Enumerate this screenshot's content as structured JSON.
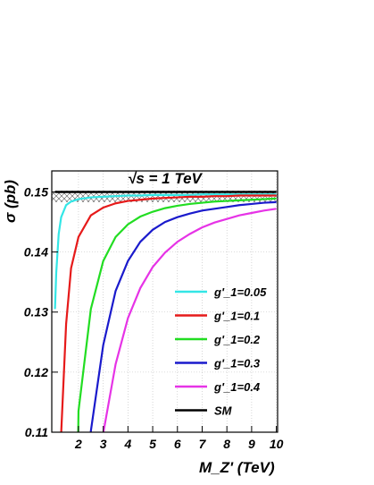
{
  "chart_data": {
    "type": "line",
    "title": "√s = 1 TeV",
    "xlabel": "M_Z' (TeV)",
    "ylabel": "σ (pb)",
    "xlim": [
      0.92,
      10.05
    ],
    "ylim": [
      0.11,
      0.1535
    ],
    "xticks": [
      2,
      3,
      4,
      5,
      6,
      7,
      8,
      9,
      10
    ],
    "yticks": [
      0.11,
      0.12,
      0.13,
      0.14,
      0.15
    ],
    "ytick_labels": [
      "0.11",
      "0.12",
      "0.13",
      "0.14",
      "0.15"
    ],
    "grid": true,
    "legend_position": "bottom-right",
    "sm_value": 0.15,
    "sm_band": [
      0.1483,
      0.1502
    ],
    "x": [
      1.05,
      1.1,
      1.2,
      1.3,
      1.5,
      1.7,
      2.0,
      2.5,
      3.0,
      3.5,
      4.0,
      4.5,
      5.0,
      5.5,
      6.0,
      6.5,
      7.0,
      7.5,
      8.0,
      8.5,
      9.0,
      9.5,
      10.0
    ],
    "series": [
      {
        "name": "g'_1=0.05",
        "color": "#33e6e6",
        "values": [
          0.1305,
          0.1365,
          0.143,
          0.1458,
          0.1478,
          0.1484,
          0.1488,
          0.1491,
          0.1492,
          0.1493,
          0.1494,
          0.1494,
          0.1495,
          0.1495,
          0.1495,
          0.1495,
          0.1496,
          0.1496,
          0.1496,
          0.1496,
          0.1496,
          0.1496,
          0.1496
        ]
      },
      {
        "name": "g'_1=0.1",
        "color": "#e61a1a",
        "values": [
          null,
          null,
          null,
          0.1098,
          0.128,
          0.1373,
          0.1425,
          0.1461,
          0.1474,
          0.1481,
          0.1485,
          0.1487,
          0.1489,
          0.149,
          0.1491,
          0.1492,
          0.1492,
          0.1493,
          0.1493,
          0.1494,
          0.1494,
          0.1494,
          0.1494
        ]
      },
      {
        "name": "g'_1=0.2",
        "color": "#22dd22",
        "values": [
          null,
          null,
          null,
          null,
          null,
          null,
          0.1135,
          0.1305,
          0.1385,
          0.1425,
          0.1446,
          0.1459,
          0.1467,
          0.1473,
          0.1477,
          0.148,
          0.1482,
          0.1484,
          0.1485,
          0.1486,
          0.1487,
          0.1488,
          0.1489
        ]
      },
      {
        "name": "g'_1=0.3",
        "color": "#1a1acc",
        "values": [
          null,
          null,
          null,
          null,
          null,
          null,
          null,
          0.1102,
          0.1245,
          0.1335,
          0.1385,
          0.1417,
          0.1437,
          0.145,
          0.1458,
          0.1464,
          0.1469,
          0.1472,
          0.1475,
          0.1478,
          0.148,
          0.1482,
          0.1483
        ]
      },
      {
        "name": "g'_1=0.4",
        "color": "#e633e6",
        "values": [
          null,
          null,
          null,
          null,
          null,
          null,
          null,
          null,
          0.1098,
          0.1213,
          0.129,
          0.134,
          0.1375,
          0.1399,
          0.1417,
          0.143,
          0.1441,
          0.1449,
          0.1455,
          0.1461,
          0.1465,
          0.1469,
          0.1472
        ]
      },
      {
        "name": "SM",
        "color": "#000000",
        "values": [
          0.15,
          0.15,
          0.15,
          0.15,
          0.15,
          0.15,
          0.15,
          0.15,
          0.15,
          0.15,
          0.15,
          0.15,
          0.15,
          0.15,
          0.15,
          0.15,
          0.15,
          0.15,
          0.15,
          0.15,
          0.15,
          0.15,
          0.15
        ]
      }
    ]
  }
}
